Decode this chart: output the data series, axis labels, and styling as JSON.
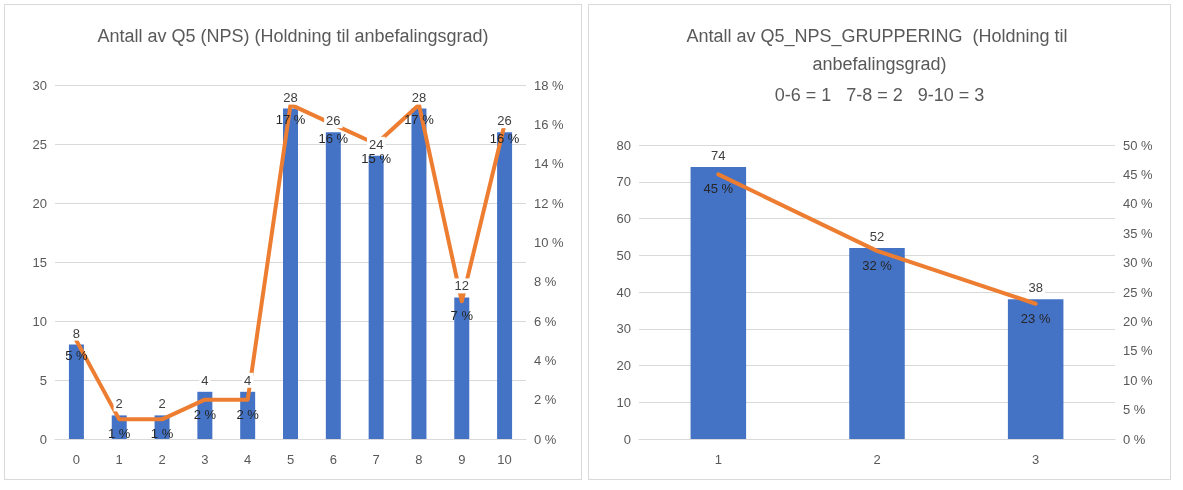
{
  "chart_data": [
    {
      "type": "bar",
      "title": "Antall av Q5 (NPS) (Holdning til anbefalingsgrad)",
      "categories": [
        "0",
        "1",
        "2",
        "3",
        "4",
        "5",
        "6",
        "7",
        "8",
        "9",
        "10"
      ],
      "series": [
        {
          "color": "#4472c4",
          "values": [
            8,
            2,
            2,
            4,
            4,
            28,
            26,
            24,
            28,
            12,
            26
          ],
          "value_labels": [
            "8",
            "2",
            "2",
            "4",
            "4",
            "28",
            "26",
            "24",
            "28",
            "12",
            "26"
          ]
        },
        {
          "type": "line",
          "axis": "y2",
          "color": "#ed7d31",
          "values": [
            5,
            1,
            1,
            2,
            2,
            17,
            16,
            15,
            17,
            7,
            16
          ],
          "value_labels": [
            "5 %",
            "1 %",
            "1 %",
            "2 %",
            "2 %",
            "17 %",
            "16 %",
            "15 %",
            "17 %",
            "7 %",
            "16 %"
          ]
        }
      ],
      "ylim": [
        0,
        30
      ],
      "yticks": [
        0,
        5,
        10,
        15,
        20,
        25,
        30
      ],
      "y2lim": [
        0,
        18
      ],
      "y2ticks": [
        {
          "value": 0,
          "label": "0 %"
        },
        {
          "value": 2,
          "label": "2 %"
        },
        {
          "value": 4,
          "label": "4 %"
        },
        {
          "value": 6,
          "label": "6 %"
        },
        {
          "value": 8,
          "label": "8 %"
        },
        {
          "value": 10,
          "label": "10 %"
        },
        {
          "value": 12,
          "label": "12 %"
        },
        {
          "value": 14,
          "label": "14 %"
        },
        {
          "value": 16,
          "label": "16 %"
        },
        {
          "value": 18,
          "label": "18 %"
        }
      ],
      "grid": "y",
      "marker": "none",
      "line_style": "solid"
    },
    {
      "type": "bar",
      "title": "Antall av Q5_NPS_GRUPPERING  (Holdning til anbefalingsgrad)",
      "subtitle": "0-6 = 1   7-8 = 2   9-10 = 3",
      "categories": [
        "1",
        "2",
        "3"
      ],
      "series": [
        {
          "color": "#4472c4",
          "values": [
            74,
            52,
            38
          ],
          "value_labels": [
            "74",
            "52",
            "38"
          ]
        },
        {
          "type": "line",
          "axis": "y2",
          "color": "#ed7d31",
          "values": [
            45,
            32,
            23
          ],
          "value_labels": [
            "45 %",
            "32 %",
            "23 %"
          ]
        }
      ],
      "ylim": [
        0,
        80
      ],
      "yticks": [
        0,
        10,
        20,
        30,
        40,
        50,
        60,
        70,
        80
      ],
      "y2lim": [
        0,
        50
      ],
      "y2ticks": [
        {
          "value": 0,
          "label": "0 %"
        },
        {
          "value": 5,
          "label": "5 %"
        },
        {
          "value": 10,
          "label": "10 %"
        },
        {
          "value": 15,
          "label": "15 %"
        },
        {
          "value": 20,
          "label": "20 %"
        },
        {
          "value": 25,
          "label": "25 %"
        },
        {
          "value": 30,
          "label": "30 %"
        },
        {
          "value": 35,
          "label": "35 %"
        },
        {
          "value": 40,
          "label": "40 %"
        },
        {
          "value": 45,
          "label": "45 %"
        },
        {
          "value": 50,
          "label": "50 %"
        }
      ],
      "grid": "y",
      "marker": "none",
      "line_style": "solid"
    }
  ]
}
